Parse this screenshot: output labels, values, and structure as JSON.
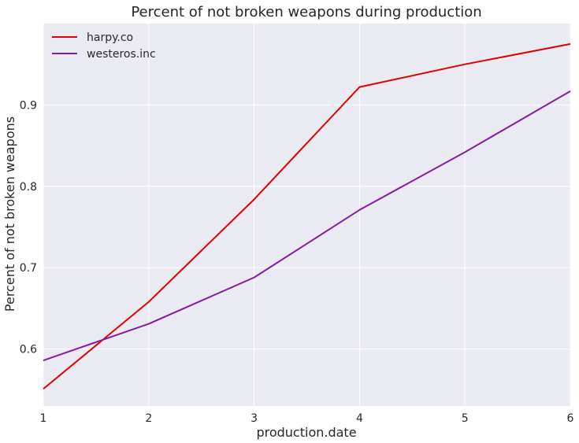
{
  "chart_data": {
    "type": "line",
    "title": "Percent of not broken weapons during production",
    "xlabel": "production.date",
    "ylabel": "Percent of not broken weapons",
    "x": [
      1,
      2,
      3,
      4,
      5,
      6
    ],
    "xlim": [
      1,
      6
    ],
    "ylim": [
      0.53,
      1.0
    ],
    "xticks": [
      1,
      2,
      3,
      4,
      5,
      6
    ],
    "yticks": [
      0.6,
      0.7,
      0.8,
      0.9
    ],
    "xtick_labels": [
      "1",
      "2",
      "3",
      "4",
      "5",
      "6"
    ],
    "ytick_labels": [
      "0.6",
      "0.7",
      "0.8",
      "0.9"
    ],
    "grid": true,
    "legend_position": "top-left",
    "series": [
      {
        "name": "harpy.co",
        "color": "#e00000",
        "values": [
          0.551,
          0.658,
          0.784,
          0.922,
          0.95,
          0.975
        ]
      },
      {
        "name": "westeros.inc",
        "color": "#8519a6",
        "values": [
          0.586,
          0.631,
          0.688,
          0.771,
          0.842,
          0.917
        ]
      }
    ],
    "background": "#eaeaf2",
    "grid_color": "#ffffff"
  }
}
